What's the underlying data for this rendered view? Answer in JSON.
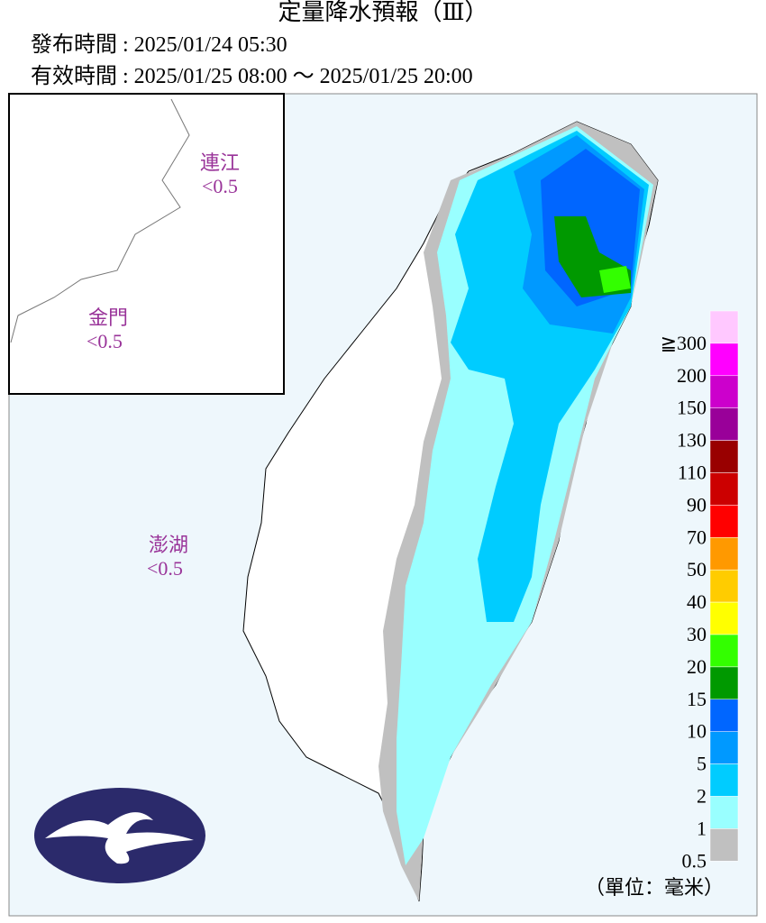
{
  "header": {
    "title": "定量降水預報（Ⅲ）",
    "issued": "發布時間 : 2025/01/24 05:30",
    "valid": "有效時間 : 2025/01/25 08:00 ～ 2025/01/25 20:00"
  },
  "regions": [
    {
      "name": "連江",
      "value": "<0.5"
    },
    {
      "name": "金門",
      "value": "<0.5"
    },
    {
      "name": "澎湖",
      "value": "<0.5"
    }
  ],
  "legend": {
    "unit": "（單位：毫米）",
    "levels": [
      {
        "label": "≧300",
        "color": "#ffc8ff"
      },
      {
        "label": "200",
        "color": "#ff00ff"
      },
      {
        "label": "150",
        "color": "#cc00cc"
      },
      {
        "label": "130",
        "color": "#990099"
      },
      {
        "label": "110",
        "color": "#990000"
      },
      {
        "label": "90",
        "color": "#cc0000"
      },
      {
        "label": "70",
        "color": "#ff0000"
      },
      {
        "label": "50",
        "color": "#ff9900"
      },
      {
        "label": "40",
        "color": "#ffcc00"
      },
      {
        "label": "30",
        "color": "#ffff00"
      },
      {
        "label": "20",
        "color": "#33ff00"
      },
      {
        "label": "15",
        "color": "#009900"
      },
      {
        "label": "10",
        "color": "#0066ff"
      },
      {
        "label": "5",
        "color": "#0099ff"
      },
      {
        "label": "2",
        "color": "#00ccff"
      },
      {
        "label": "1",
        "color": "#99ffff"
      },
      {
        "label": "0.5",
        "color": "#c0c0c0"
      }
    ]
  }
}
